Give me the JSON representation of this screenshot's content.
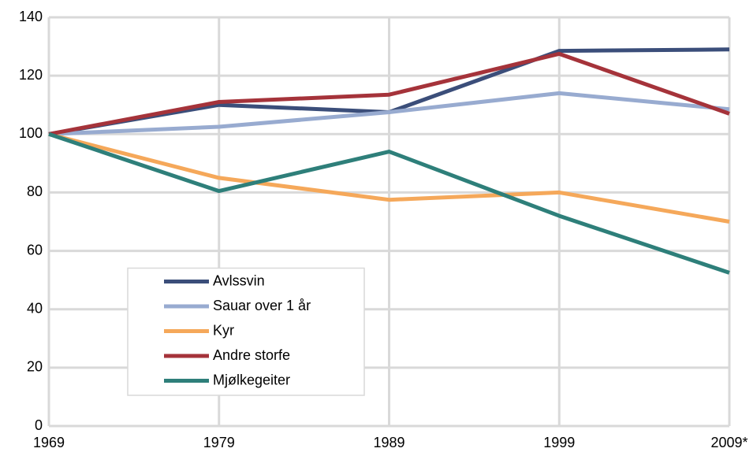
{
  "chart_data": {
    "type": "line",
    "categories": [
      "1969",
      "1979",
      "1989",
      "1999",
      "2009*"
    ],
    "series": [
      {
        "name": "Avlssvin",
        "color": "#3b4e7a",
        "values": [
          100,
          110,
          107.5,
          128.5,
          129
        ]
      },
      {
        "name": "Sauar over 1 år",
        "color": "#98abd0",
        "values": [
          100,
          102.5,
          107.5,
          114,
          108.5
        ]
      },
      {
        "name": "Kyr",
        "color": "#f5a85a",
        "values": [
          100,
          85,
          77.5,
          80,
          70
        ]
      },
      {
        "name": "Andre storfe",
        "color": "#a5333a",
        "values": [
          100,
          111,
          113.5,
          127.5,
          107
        ]
      },
      {
        "name": "Mjølkegeiter",
        "color": "#2e7f7a",
        "values": [
          100,
          80.5,
          94,
          72,
          52.5
        ]
      }
    ],
    "ylim": [
      0,
      140
    ],
    "yticks": [
      0,
      20,
      40,
      60,
      80,
      100,
      120,
      140
    ],
    "grid": true,
    "legend": "lower left"
  }
}
